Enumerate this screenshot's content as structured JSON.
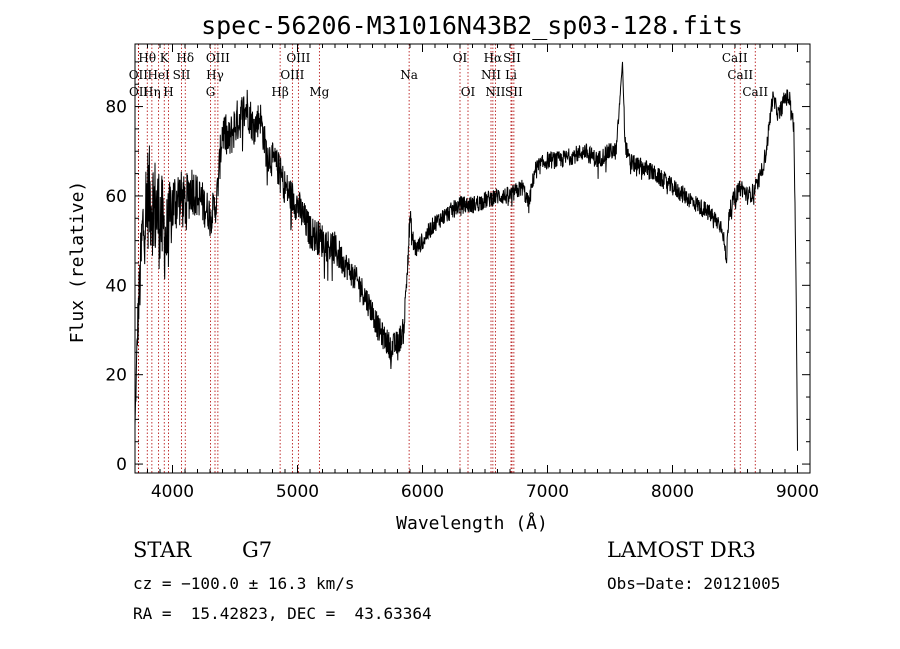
{
  "chart_data": {
    "type": "line",
    "title": "spec-56206-M31016N43B2_sp03-128.fits",
    "xlabel": "Wavelength (Å)",
    "ylabel": "Flux (relative)",
    "xlim": [
      3700,
      9100
    ],
    "ylim": [
      -2,
      94
    ],
    "xticks": [
      4000,
      5000,
      6000,
      7000,
      8000,
      9000
    ],
    "yticks": [
      0,
      20,
      40,
      60,
      80
    ],
    "grid": false,
    "legend": "none",
    "spectrum_anchors": {
      "x": [
        3700,
        3720,
        3760,
        3800,
        3850,
        3900,
        3950,
        4000,
        4050,
        4100,
        4150,
        4200,
        4250,
        4300,
        4350,
        4400,
        4450,
        4500,
        4550,
        4600,
        4650,
        4700,
        4750,
        4800,
        4850,
        4900,
        4950,
        5000,
        5100,
        5200,
        5300,
        5400,
        5500,
        5600,
        5650,
        5700,
        5750,
        5800,
        5850,
        5900,
        5920,
        5950,
        6000,
        6100,
        6200,
        6300,
        6400,
        6500,
        6600,
        6700,
        6800,
        6850,
        6900,
        7000,
        7100,
        7200,
        7300,
        7400,
        7500,
        7550,
        7600,
        7620,
        7650,
        7700,
        7800,
        7900,
        8000,
        8100,
        8200,
        8300,
        8400,
        8430,
        8450,
        8500,
        8550,
        8600,
        8650,
        8700,
        8750,
        8800,
        8850,
        8900,
        8940,
        8970,
        8985,
        9000
      ],
      "y": [
        8,
        30,
        52,
        60,
        58,
        55,
        50,
        58,
        60,
        58,
        62,
        60,
        58,
        56,
        58,
        75,
        72,
        76,
        78,
        80,
        75,
        78,
        70,
        68,
        66,
        62,
        60,
        58,
        52,
        50,
        48,
        44,
        40,
        34,
        30,
        28,
        26,
        27,
        30,
        55,
        50,
        48,
        50,
        54,
        56,
        58,
        58,
        59,
        60,
        60,
        62,
        58,
        66,
        68,
        68,
        69,
        70,
        68,
        70,
        70,
        90,
        72,
        68,
        67,
        66,
        64,
        62,
        60,
        58,
        56,
        53,
        45,
        56,
        60,
        62,
        60,
        61,
        64,
        70,
        82,
        78,
        82,
        82,
        75,
        50,
        3
      ],
      "noise": [
        2,
        6,
        10,
        12,
        12,
        12,
        10,
        8,
        7,
        6,
        6,
        5,
        5,
        4,
        4,
        5,
        5,
        5,
        5,
        5,
        4,
        4,
        4,
        4,
        4,
        4,
        4,
        4,
        4,
        4,
        4,
        3,
        3,
        3,
        3,
        3,
        3,
        3,
        3,
        3,
        3,
        2,
        2,
        2,
        2,
        2,
        2,
        2,
        2,
        2,
        2,
        2,
        2,
        2,
        2,
        2,
        2,
        2,
        2,
        2,
        0,
        2,
        2,
        2,
        2,
        2,
        2,
        2,
        2,
        2,
        2,
        2,
        2,
        2,
        2,
        2,
        2,
        2,
        2,
        2,
        2,
        2,
        2,
        2,
        2,
        0
      ]
    },
    "line_markers": [
      {
        "label": "Hθ",
        "x": 3798,
        "row": 1
      },
      {
        "label": "K",
        "x": 3934,
        "row": 1
      },
      {
        "label": "Hδ",
        "x": 4102,
        "row": 1
      },
      {
        "label": "OIII",
        "x": 4363,
        "row": 1
      },
      {
        "label": "OIII",
        "x": 5007,
        "row": 1
      },
      {
        "label": "OI",
        "x": 6300,
        "row": 1
      },
      {
        "label": "Hα",
        "x": 6563,
        "row": 1
      },
      {
        "label": "SII",
        "x": 6716,
        "row": 1
      },
      {
        "label": "CaII",
        "x": 8498,
        "row": 1
      },
      {
        "label": "OII",
        "x": 3727,
        "row": 2
      },
      {
        "label": "HeI",
        "x": 3889,
        "row": 2
      },
      {
        "label": "SII",
        "x": 4072,
        "row": 2
      },
      {
        "label": "Hγ",
        "x": 4340,
        "row": 2
      },
      {
        "label": "OIII",
        "x": 4959,
        "row": 2
      },
      {
        "label": "Na",
        "x": 5893,
        "row": 2
      },
      {
        "label": "NII",
        "x": 6548,
        "row": 2
      },
      {
        "label": "Li",
        "x": 6708,
        "row": 2
      },
      {
        "label": "CaII",
        "x": 8542,
        "row": 2
      },
      {
        "label": "OII",
        "x": 3729,
        "row": 3
      },
      {
        "label": "Hη",
        "x": 3835,
        "row": 3
      },
      {
        "label": "H",
        "x": 3968,
        "row": 3
      },
      {
        "label": "G",
        "x": 4304,
        "row": 3
      },
      {
        "label": "Hβ",
        "x": 4861,
        "row": 3
      },
      {
        "label": "Mg",
        "x": 5175,
        "row": 3
      },
      {
        "label": "OI",
        "x": 6364,
        "row": 3
      },
      {
        "label": "NII",
        "x": 6583,
        "row": 3
      },
      {
        "label": "SII",
        "x": 6731,
        "row": 3
      },
      {
        "label": "CaII",
        "x": 8662,
        "row": 3
      }
    ]
  },
  "info": {
    "object_class": "STAR",
    "subclass": "G7",
    "survey": "LAMOST DR3",
    "redshift_line": "cz = −100.0 ± 16.3 km/s",
    "obs_date_line": "Obs−Date: 20121005",
    "coords_line": "RA =  15.42823, DEC =  43.63364"
  }
}
